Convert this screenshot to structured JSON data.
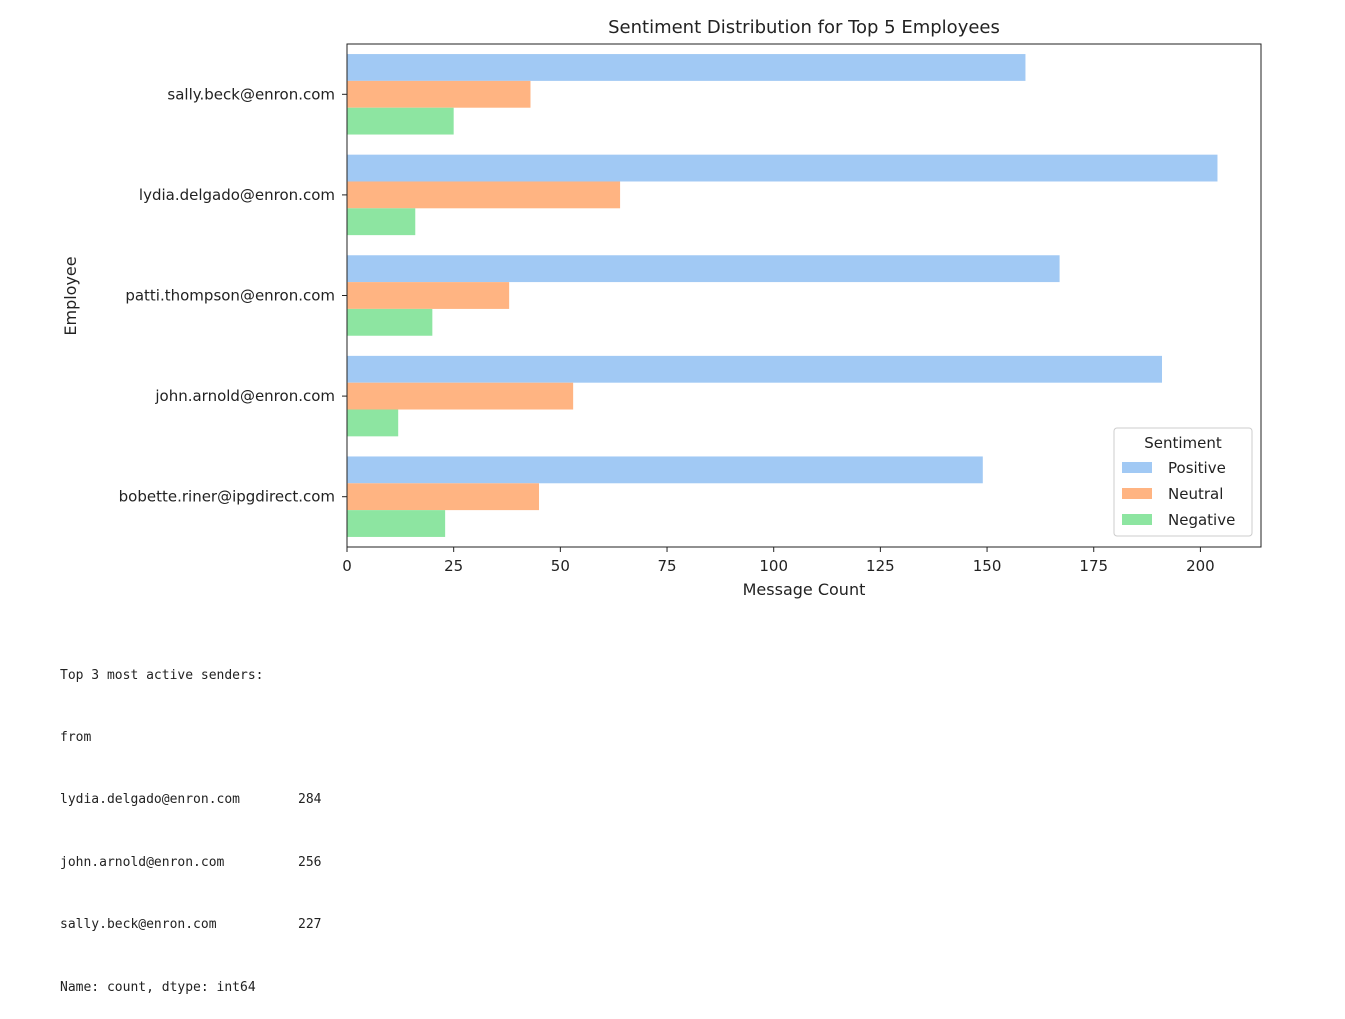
{
  "chart_data": {
    "type": "bar",
    "orientation": "horizontal",
    "title": "Sentiment Distribution for Top 5 Employees",
    "xlabel": "Message Count",
    "ylabel": "Employee",
    "categories": [
      "sally.beck@enron.com",
      "lydia.delgado@enron.com",
      "patti.thompson@enron.com",
      "john.arnold@enron.com",
      "bobette.riner@ipgdirect.com"
    ],
    "series": [
      {
        "name": "Positive",
        "color": "#a1c9f4",
        "values": [
          159,
          204,
          167,
          191,
          149
        ]
      },
      {
        "name": "Neutral",
        "color": "#ffb482",
        "values": [
          43,
          64,
          38,
          53,
          45
        ]
      },
      {
        "name": "Negative",
        "color": "#8de5a1",
        "values": [
          25,
          16,
          20,
          12,
          23
        ]
      }
    ],
    "xlim": [
      0,
      214.2
    ],
    "xticks": [
      0,
      25,
      50,
      75,
      100,
      125,
      150,
      175,
      200
    ],
    "legend": {
      "title": "Sentiment",
      "position": "lower-right"
    }
  },
  "output": {
    "header": "Top 3 most active senders:",
    "index_name": "from",
    "rows": [
      {
        "name": "lydia.delgado@enron.com",
        "count": "284"
      },
      {
        "name": "john.arnold@enron.com",
        "count": "256"
      },
      {
        "name": "sally.beck@enron.com",
        "count": "227"
      }
    ],
    "footer": "Name: count, dtype: int64"
  }
}
